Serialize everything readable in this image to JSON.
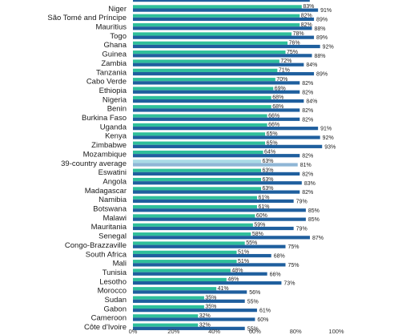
{
  "chart_data": {
    "type": "bar",
    "orientation": "horizontal",
    "title": "",
    "xlabel": "",
    "ylabel": "",
    "xlim": [
      0,
      100
    ],
    "x_ticks": [
      "0%",
      "20%",
      "40%",
      "60%",
      "80%",
      "100%"
    ],
    "grid": false,
    "colors": {
      "series_a": "#2fbf9b",
      "series_b": "#1f5f9e",
      "average_a": "#a9dbe6",
      "average_b": "#8fb6d6"
    },
    "categories": [
      "Niger",
      "São Tomé and Príncipe",
      "Mauritius",
      "Togo",
      "Ghana",
      "Guinea",
      "Zambia",
      "Tanzania",
      "Cabo Verde",
      "Ethiopia",
      "Nigeria",
      "Benin",
      "Burkina Faso",
      "Uganda",
      "Kenya",
      "Zimbabwe",
      "Mozambique",
      "39-country average",
      "Eswatini",
      "Angola",
      "Madagascar",
      "Namibia",
      "Botswana",
      "Malawi",
      "Mauritania",
      "Senegal",
      "Congo-Brazzaville",
      "South Africa",
      "Mali",
      "Tunisia",
      "Lesotho",
      "Morocco",
      "Sudan",
      "Gabon",
      "Cameroon",
      "Côte d'Ivoire"
    ],
    "average_category": "39-country average",
    "series": [
      {
        "values": [
          83,
          82,
          82,
          78,
          76,
          75,
          72,
          71,
          70,
          69,
          68,
          68,
          66,
          66,
          65,
          65,
          64,
          63,
          63,
          63,
          63,
          61,
          61,
          60,
          59,
          58,
          55,
          51,
          51,
          48,
          46,
          41,
          35,
          35,
          32,
          32
        ],
        "labels": [
          "83%",
          "82%",
          "82%",
          "78%",
          "76%",
          "75%",
          "72%",
          "71%",
          "70%",
          "69%",
          "68%",
          "68%",
          "66%",
          "66%",
          "65%",
          "65%",
          "64%",
          "63%",
          "63%",
          "63%",
          "63%",
          "61%",
          "61%",
          "60%",
          "59%",
          "58%",
          "55%",
          "51%",
          "51%",
          "48%",
          "46%",
          "41%",
          "35%",
          "35%",
          "32%",
          "32%"
        ]
      },
      {
        "values": [
          91,
          89,
          88,
          89,
          92,
          88,
          84,
          89,
          82,
          82,
          84,
          82,
          82,
          91,
          92,
          93,
          82,
          81,
          82,
          83,
          82,
          79,
          85,
          85,
          79,
          87,
          75,
          68,
          75,
          66,
          73,
          56,
          55,
          61,
          60,
          55
        ],
        "labels": [
          "91%",
          "89%",
          "88%",
          "89%",
          "92%",
          "88%",
          "84%",
          "89%",
          "82%",
          "82%",
          "84%",
          "82%",
          "82%",
          "91%",
          "92%",
          "93%",
          "82%",
          "81%",
          "82%",
          "83%",
          "82%",
          "79%",
          "85%",
          "85%",
          "79%",
          "87%",
          "75%",
          "68%",
          "75%",
          "66%",
          "73%",
          "56%",
          "55%",
          "61%",
          "60%",
          "55%"
        ]
      }
    ]
  }
}
